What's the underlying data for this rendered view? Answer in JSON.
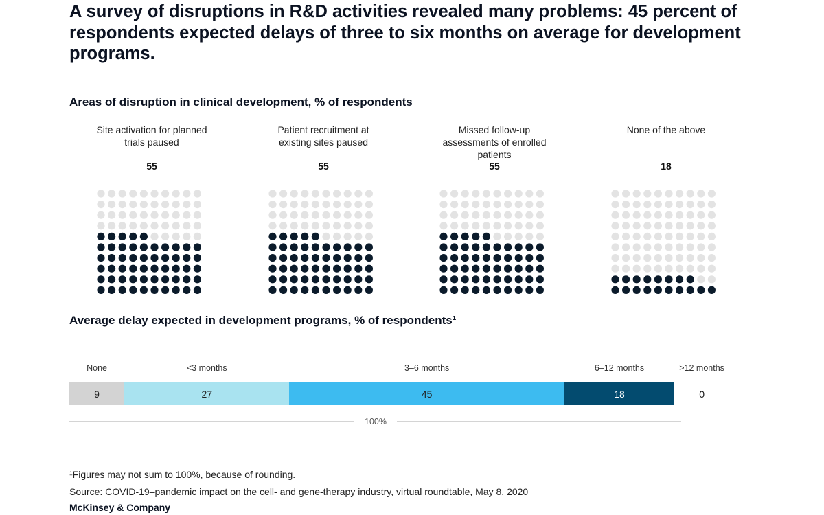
{
  "headline": "A survey of disruptions in R&D activities revealed many problems: 45 percent of respondents expected delays of three to six months on average for development programs.",
  "colors": {
    "dot_filled": "#0b1b2b",
    "dot_empty": "#e3e3e3",
    "seg_none": "#d3d3d3",
    "seg_lt3": "#a9e3f0",
    "seg_3to6": "#3dbbf0",
    "seg_6to12": "#034b6f"
  },
  "chart_data": [
    {
      "type": "waffle",
      "title": "Areas of disruption in clinical development, % of respondents",
      "grid": {
        "rows": 10,
        "cols": 10
      },
      "categories": [
        "Site activation for planned trials paused",
        "Patient recruitment at existing sites paused",
        "Missed follow-up assessments of enrolled patients",
        "None of the above"
      ],
      "values": [
        55,
        55,
        55,
        18
      ],
      "value_labels": [
        "55",
        "55",
        "55",
        "18"
      ]
    },
    {
      "type": "bar",
      "orientation": "horizontal-stacked",
      "title": "Average delay expected in development programs, % of respondents¹",
      "categories": [
        "None",
        "<3 months",
        "3–6 months",
        "6–12 months",
        ">12 months"
      ],
      "values": [
        9,
        27,
        45,
        18,
        0
      ],
      "value_labels": [
        "9",
        "27",
        "45",
        "18",
        "0"
      ],
      "total_label": "100%"
    }
  ],
  "footnotes": {
    "note": "¹Figures may not sum to 100%, because of rounding.",
    "source": "Source: COVID-19–pandemic impact on the cell- and gene-therapy industry, virtual roundtable, May 8, 2020",
    "brand": "McKinsey & Company"
  }
}
